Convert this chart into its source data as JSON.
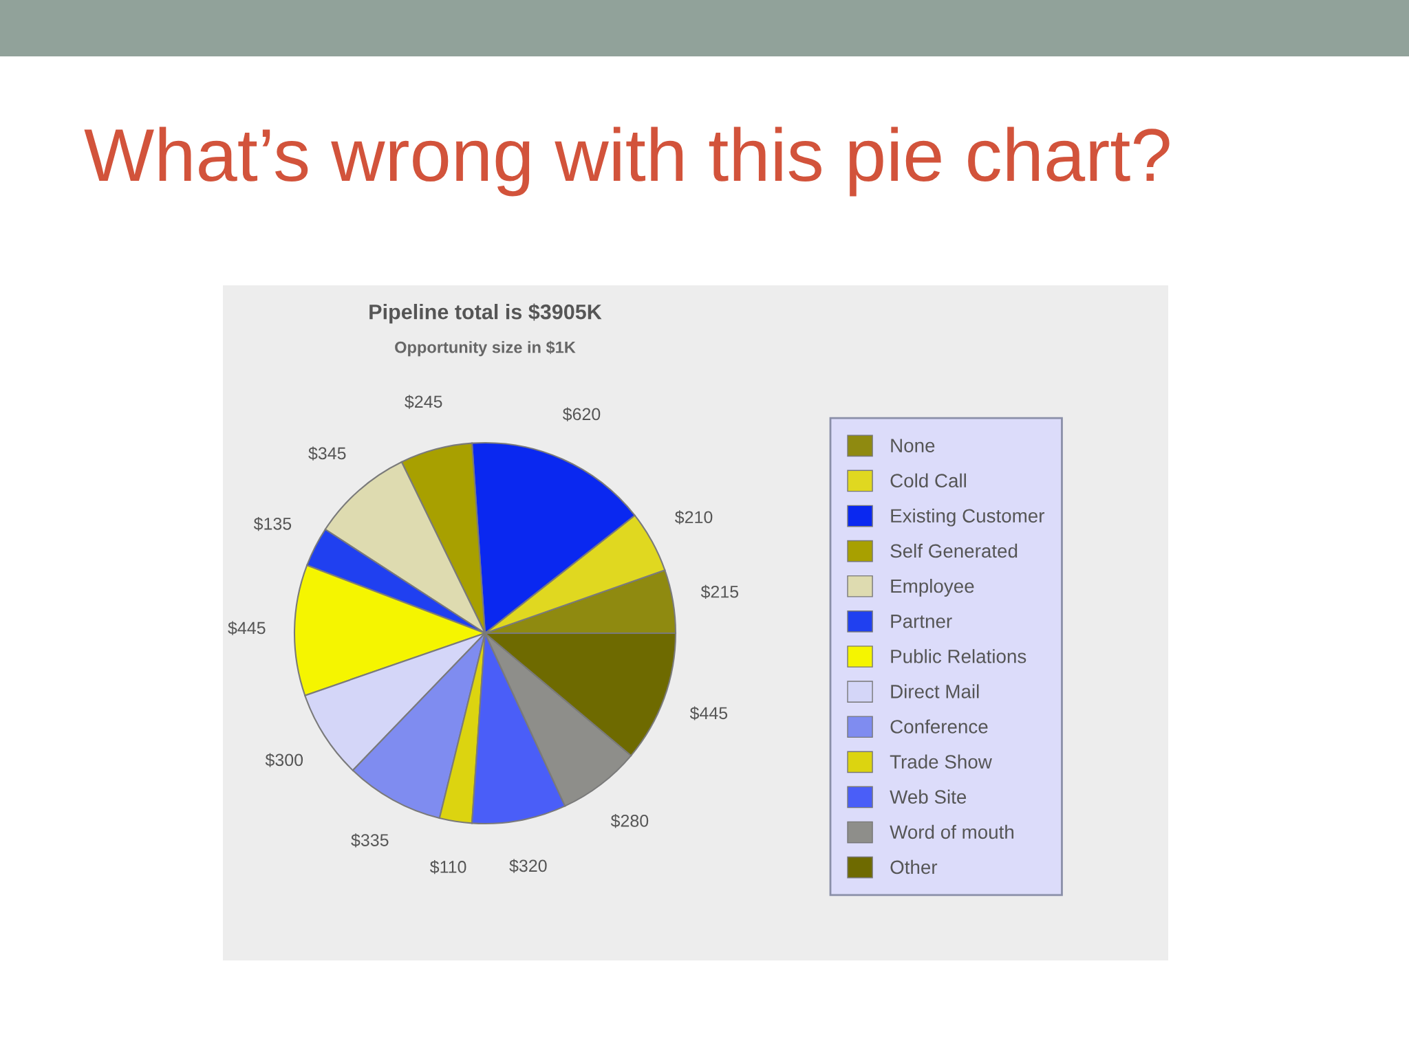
{
  "chart_data": {
    "type": "pie",
    "title": "Pipeline total is $3905K",
    "subtitle": "Opportunity size in $1K",
    "annotations": [
      "What’s wrong with this pie chart?"
    ],
    "categories": [
      "None",
      "Cold Call",
      "Existing Customer",
      "Self Generated",
      "Employee",
      "Partner",
      "Public Relations",
      "Direct Mail",
      "Conference",
      "Trade Show",
      "Web Site",
      "Word of mouth",
      "Other"
    ],
    "values": [
      215,
      210,
      620,
      245,
      345,
      135,
      445,
      300,
      335,
      110,
      320,
      280,
      445
    ],
    "value_labels": [
      "$215",
      "$210",
      "$620",
      "$245",
      "$345",
      "$135",
      "$445",
      "$300",
      "$335",
      "$110",
      "$320",
      "$280",
      "$445"
    ],
    "colors": [
      "#8f8a10",
      "#e0d820",
      "#0a28f0",
      "#a8a000",
      "#dedbb0",
      "#2040f0",
      "#f5f500",
      "#d4d6f8",
      "#7f8cf0",
      "#dcd410",
      "#4a5ef8",
      "#8e8e8a",
      "#6e6a00"
    ],
    "legend": "right"
  }
}
